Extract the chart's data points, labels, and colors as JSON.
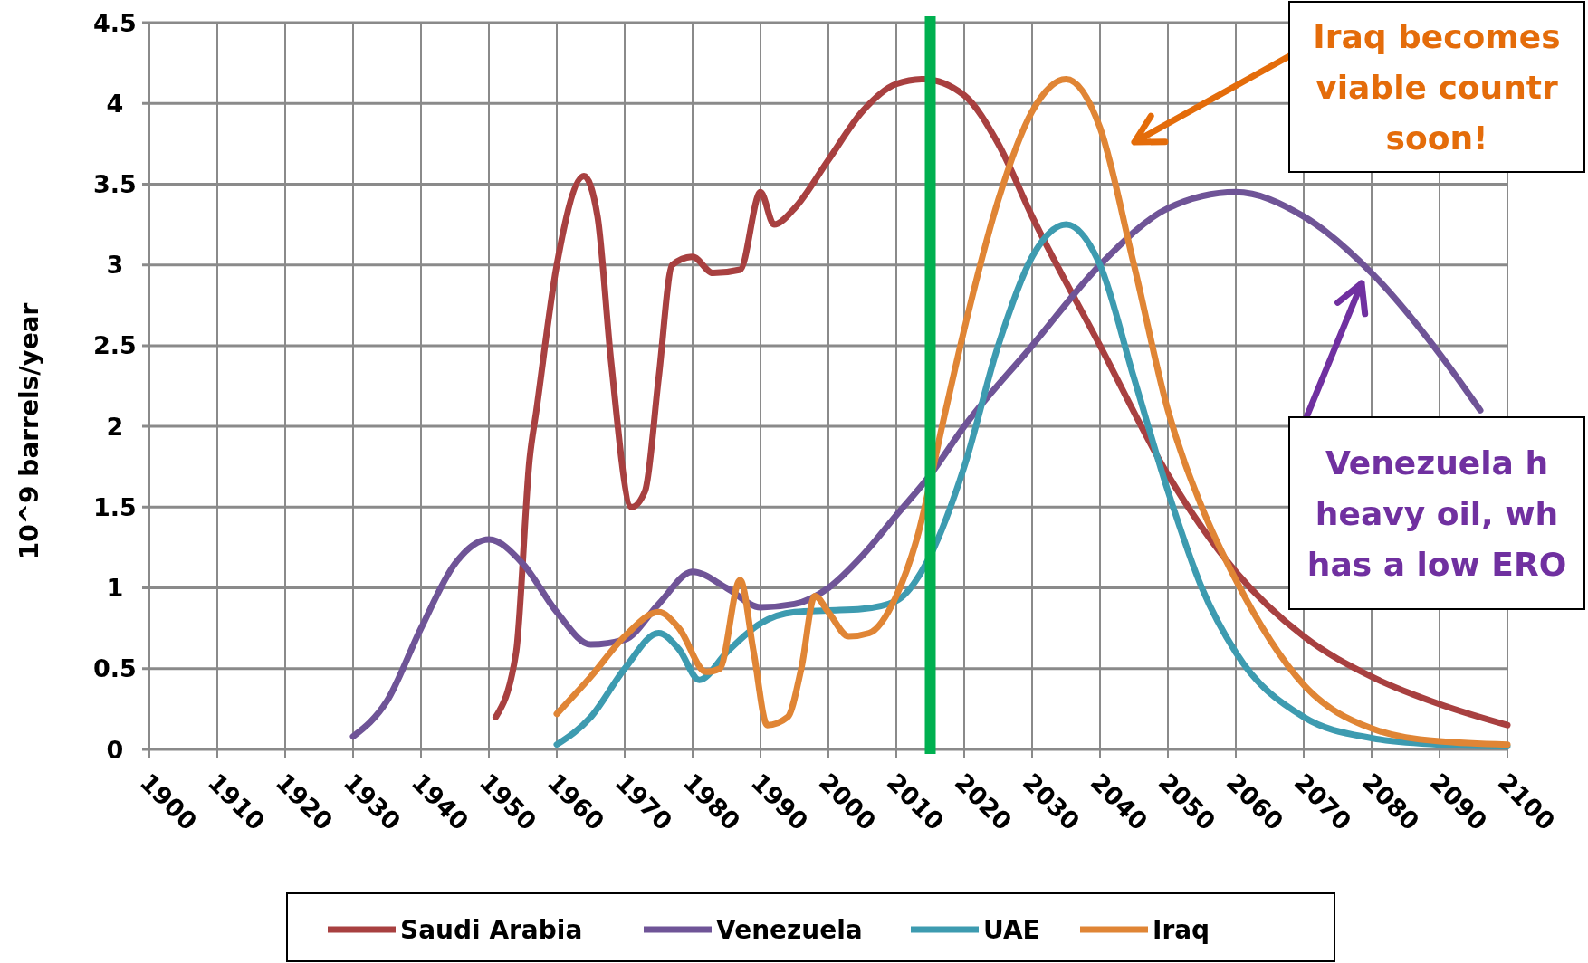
{
  "chart_data": {
    "type": "line",
    "ylabel": "10^9 barrels/year",
    "xlim": [
      1900,
      2100
    ],
    "xticks": [
      1900,
      1910,
      1920,
      1930,
      1940,
      1950,
      1960,
      1970,
      1980,
      1990,
      2000,
      2010,
      2020,
      2030,
      2040,
      2050,
      2060,
      2070,
      2080,
      2090,
      2100
    ],
    "ylim": [
      0,
      4.5
    ],
    "yticks": [
      0,
      0.5,
      1,
      1.5,
      2,
      2.5,
      3,
      3.5,
      4,
      4.5
    ],
    "grid": true,
    "legend": "bottom",
    "line_style": "solid",
    "marker": "none",
    "series": [
      {
        "name": "Saudi Arabia",
        "color": "#a84040",
        "x": [
          1951,
          1954,
          1956,
          1957,
          1960,
          1964,
          1966,
          1968,
          1971,
          1973,
          1975,
          1977,
          1980,
          1983,
          1987,
          1990,
          1992,
          1995,
          2000,
          2005,
          2010,
          2014,
          2020,
          2025,
          2030,
          2040,
          2050,
          2060,
          2070,
          2080,
          2090,
          2100
        ],
        "values": [
          0.2,
          0.6,
          1.8,
          2.1,
          3.0,
          3.55,
          3.3,
          2.4,
          1.5,
          1.6,
          2.3,
          3.0,
          3.05,
          2.95,
          2.97,
          3.45,
          3.25,
          3.35,
          3.65,
          3.95,
          4.12,
          4.15,
          4.05,
          3.75,
          3.3,
          2.5,
          1.7,
          1.1,
          0.7,
          0.45,
          0.28,
          0.15
        ]
      },
      {
        "name": "Venezuela",
        "color": "#6f5497",
        "x": [
          1930,
          1935,
          1940,
          1945,
          1950,
          1955,
          1960,
          1965,
          1970,
          1975,
          1980,
          1985,
          1990,
          1995,
          2000,
          2005,
          2010,
          2015,
          2020,
          2030,
          2040,
          2050,
          2060,
          2070,
          2080,
          2090,
          2096
        ],
        "values": [
          0.08,
          0.3,
          0.75,
          1.15,
          1.3,
          1.15,
          0.85,
          0.65,
          0.68,
          0.9,
          1.1,
          1.0,
          0.88,
          0.9,
          1.0,
          1.2,
          1.45,
          1.7,
          2.0,
          2.5,
          3.0,
          3.35,
          3.45,
          3.3,
          2.95,
          2.45,
          2.1
        ]
      },
      {
        "name": "UAE",
        "color": "#3d9bb0",
        "x": [
          1960,
          1965,
          1970,
          1975,
          1978,
          1981,
          1985,
          1990,
          1995,
          2000,
          2005,
          2010,
          2015,
          2020,
          2025,
          2030,
          2035,
          2040,
          2045,
          2050,
          2055,
          2060,
          2070,
          2080,
          2090,
          2100
        ],
        "values": [
          0.03,
          0.2,
          0.5,
          0.72,
          0.62,
          0.43,
          0.6,
          0.78,
          0.85,
          0.86,
          0.87,
          0.92,
          1.2,
          1.75,
          2.5,
          3.05,
          3.25,
          3.0,
          2.3,
          1.6,
          1.0,
          0.6,
          0.2,
          0.07,
          0.03,
          0.02
        ]
      },
      {
        "name": "Iraq",
        "color": "#e08535",
        "x": [
          1960,
          1965,
          1970,
          1975,
          1978,
          1982,
          1984,
          1987,
          1989,
          1991,
          1994,
          1996,
          1998,
          2000,
          2003,
          2006,
          2010,
          2013,
          2017,
          2020,
          2025,
          2030,
          2035,
          2040,
          2045,
          2050,
          2055,
          2060,
          2070,
          2080,
          2090,
          2100
        ],
        "values": [
          0.22,
          0.45,
          0.7,
          0.85,
          0.75,
          0.48,
          0.5,
          1.05,
          0.6,
          0.15,
          0.2,
          0.5,
          0.95,
          0.85,
          0.7,
          0.72,
          0.95,
          1.3,
          2.05,
          2.6,
          3.4,
          3.95,
          4.15,
          3.85,
          3.0,
          2.1,
          1.5,
          1.05,
          0.4,
          0.13,
          0.05,
          0.03
        ]
      }
    ],
    "ref_lines": [
      {
        "axis": "x",
        "value": 2015,
        "color": "#00b050"
      }
    ],
    "annotations": [
      "Iraq becomes\nviable countr\nsoon!",
      "Venezuela h\nheavy oil, wh\nhas a low ERO"
    ]
  }
}
